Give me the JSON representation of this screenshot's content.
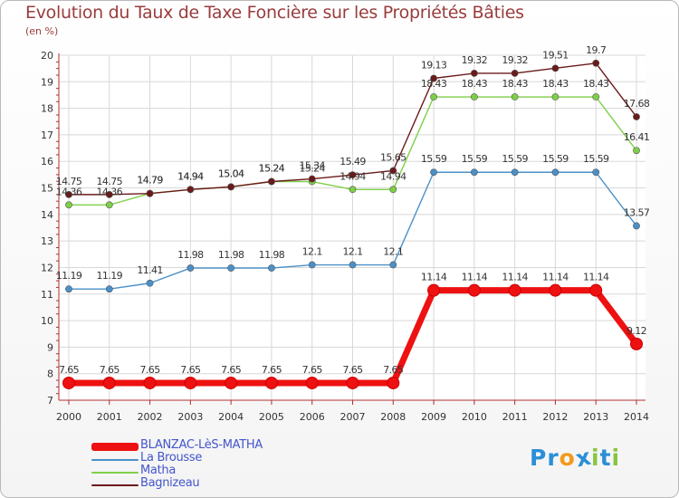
{
  "header": {
    "title": "Evolution du Taux de Taxe Foncière sur les Propriétés Bâties",
    "unit": "(en %)"
  },
  "logo": {
    "text": "Proxiti",
    "letters": [
      "P",
      "r",
      "o",
      "x",
      "i",
      "t",
      "i"
    ],
    "colors": [
      "#2a8fd6",
      "#2a8fd6",
      "#f39a1e",
      "#2a8fd6",
      "#88c542",
      "#2a8fd6",
      "#88c542"
    ]
  },
  "chart_data": {
    "type": "line",
    "title": "Evolution du Taux de Taxe Foncière sur les Propriétés Bâties",
    "ylabel": "(en %)",
    "xlabel": "",
    "x": [
      "2000",
      "2001",
      "2002",
      "2003",
      "2004",
      "2005",
      "2006",
      "2007",
      "2008",
      "2009",
      "2010",
      "2011",
      "2012",
      "2013",
      "2014"
    ],
    "ylim": [
      7,
      20
    ],
    "yticks": [
      "7",
      "8",
      "9",
      "10",
      "11",
      "12",
      "13",
      "14",
      "15",
      "16",
      "17",
      "18",
      "19",
      "20"
    ],
    "grid": true,
    "legend_position": "bottom-left",
    "series": [
      {
        "name": "BLANZAC-LèS-MATHA",
        "color": "#ee1111",
        "bold": true,
        "values": [
          7.65,
          7.65,
          7.65,
          7.65,
          7.65,
          7.65,
          7.65,
          7.65,
          7.65,
          11.14,
          11.14,
          11.14,
          11.14,
          11.14,
          9.12
        ],
        "labels": [
          "7.65",
          "7.65",
          "7.65",
          "7.65",
          "7.65",
          "7.65",
          "7.65",
          "7.65",
          "7.65",
          "11.14",
          "11.14",
          "11.14",
          "11.14",
          "11.14",
          "9.12"
        ]
      },
      {
        "name": "La Brousse",
        "color": "#4a90c8",
        "bold": false,
        "values": [
          11.19,
          11.19,
          11.41,
          11.98,
          11.98,
          11.98,
          12.1,
          12.1,
          12.1,
          15.59,
          15.59,
          15.59,
          15.59,
          15.59,
          13.57
        ],
        "labels": [
          "11.19",
          "11.19",
          "11.41",
          "11.98",
          "11.98",
          "11.98",
          "12.1",
          "12.1",
          "12.1",
          "15.59",
          "15.59",
          "15.59",
          "15.59",
          "15.59",
          "13.57"
        ]
      },
      {
        "name": "Matha",
        "color": "#7ecf48",
        "bold": false,
        "values": [
          14.36,
          14.36,
          14.79,
          14.94,
          15.04,
          15.24,
          15.24,
          14.94,
          14.94,
          18.43,
          18.43,
          18.43,
          18.43,
          18.43,
          16.41
        ],
        "labels": [
          "14.36",
          "14.36",
          "14.79",
          "14.94",
          "15.04",
          "15.24",
          "15.24",
          "14.94",
          "14.94",
          "18.43",
          "18.43",
          "18.43",
          "18.43",
          "18.43",
          "16.41"
        ]
      },
      {
        "name": "Bagnizeau",
        "color": "#6b1a1a",
        "bold": false,
        "values": [
          14.75,
          14.75,
          14.79,
          14.94,
          15.04,
          15.24,
          15.34,
          15.49,
          15.65,
          19.13,
          19.32,
          19.32,
          19.51,
          19.7,
          17.68
        ],
        "labels": [
          "14.75",
          "14.75",
          "14.79",
          "14.94",
          "15.04",
          "15.24",
          "15.34",
          "15.49",
          "15.65",
          "19.13",
          "19.32",
          "19.32",
          "19.51",
          "19.7",
          "17.68"
        ]
      }
    ]
  }
}
